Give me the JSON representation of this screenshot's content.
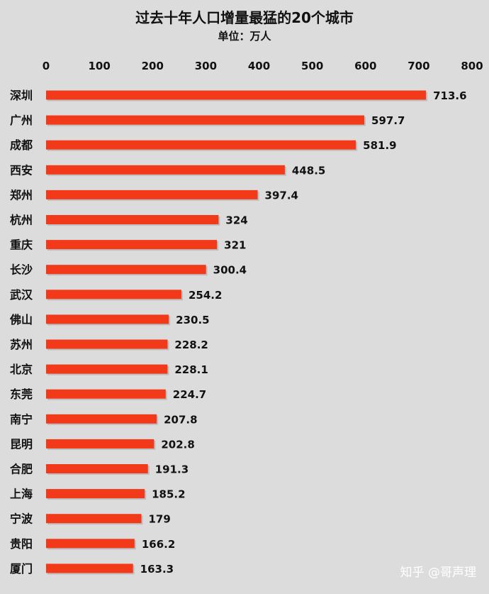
{
  "chart_data": {
    "type": "bar",
    "orientation": "horizontal",
    "title": "过去十年人口增量最猛的20个城市",
    "subtitle": "单位：万人",
    "xlim": [
      0,
      800
    ],
    "x_ticks": [
      0,
      100,
      200,
      300,
      400,
      500,
      600,
      700,
      800
    ],
    "x_axis_position": "top",
    "grid": false,
    "legend": "none",
    "categories": [
      "深圳",
      "广州",
      "成都",
      "西安",
      "郑州",
      "杭州",
      "重庆",
      "长沙",
      "武汉",
      "佛山",
      "苏州",
      "北京",
      "东莞",
      "南宁",
      "昆明",
      "合肥",
      "上海",
      "宁波",
      "贵阳",
      "厦门"
    ],
    "values": [
      713.6,
      597.7,
      581.9,
      448.5,
      397.4,
      324,
      321,
      300.4,
      254.2,
      230.5,
      228.2,
      228.1,
      224.7,
      207.8,
      202.8,
      191.3,
      185.2,
      179,
      166.2,
      163.3
    ],
    "value_labels": [
      "713.6",
      "597.7",
      "581.9",
      "448.5",
      "397.4",
      "324",
      "321",
      "300.4",
      "254.2",
      "230.5",
      "228.2",
      "228.1",
      "224.7",
      "207.8",
      "202.8",
      "191.3",
      "185.2",
      "179",
      "166.2",
      "163.3"
    ],
    "bar_color": "#f23a1a",
    "background_color": "#dcdcdc"
  },
  "watermark": "知乎 @哥声理"
}
